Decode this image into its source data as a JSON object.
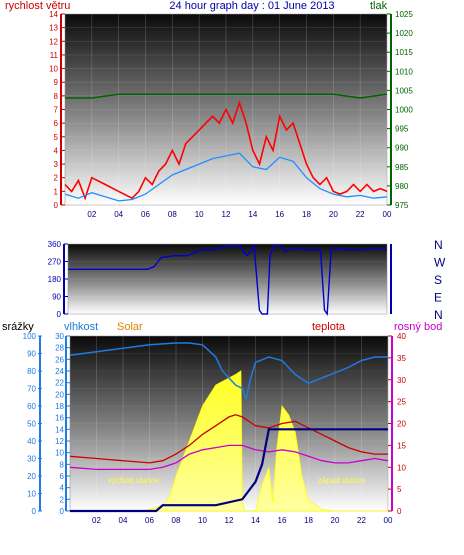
{
  "header": {
    "left": "rychlost větru",
    "center": "24 hour graph day : 01 June 2013",
    "right": "tlak"
  },
  "hours": [
    "02",
    "04",
    "06",
    "08",
    "10",
    "12",
    "14",
    "16",
    "18",
    "20",
    "22",
    "00"
  ],
  "colors": {
    "wind": "#ff0000",
    "wind_avg": "#1e90ff",
    "pressure": "#006400",
    "direction": "#0000cd",
    "humidity": "#1e7be0",
    "solar": "#ffff00",
    "temperature": "#cc0000",
    "dewpoint": "#cc00cc",
    "rain": "#000080"
  },
  "chart_data": [
    {
      "type": "line",
      "panel": "wind-pressure",
      "x_range": [
        0,
        24
      ],
      "left_axis": {
        "label": "rychlost větru",
        "range": [
          0,
          14
        ],
        "ticks": [
          "0",
          "1",
          "2",
          "3",
          "4",
          "5",
          "6",
          "7",
          "8",
          "9",
          "10",
          "11",
          "12",
          "13",
          "14"
        ]
      },
      "right_axis": {
        "label": "tlak",
        "range": [
          975,
          1025
        ],
        "ticks": [
          "975",
          "980",
          "985",
          "990",
          "995",
          "1000",
          "1005",
          "1010",
          "1015",
          "1020",
          "1025"
        ]
      },
      "series": [
        {
          "name": "gust",
          "x": [
            0,
            0.5,
            1,
            1.5,
            2,
            3,
            4,
            5,
            5.5,
            6,
            6.5,
            7,
            7.5,
            8,
            8.5,
            9,
            9.5,
            10,
            10.5,
            11,
            11.5,
            12,
            12.5,
            13,
            13.5,
            14,
            14.5,
            15,
            15.5,
            16,
            16.5,
            17,
            17.5,
            18,
            18.5,
            19,
            19.5,
            20,
            20.5,
            21,
            21.5,
            22,
            22.5,
            23,
            23.5,
            24
          ],
          "y": [
            1.5,
            1,
            1.8,
            0.5,
            2,
            1.5,
            1,
            0.5,
            1,
            2,
            1.5,
            2.5,
            3,
            4,
            3,
            4.5,
            5,
            5.5,
            6,
            6.5,
            6,
            7,
            6,
            7.5,
            6,
            4,
            3,
            5,
            4,
            6.5,
            5.5,
            6,
            4.5,
            3,
            2,
            1.5,
            2,
            1,
            0.8,
            1,
            1.5,
            1,
            1.5,
            1,
            1.2,
            1
          ]
        },
        {
          "name": "average",
          "x": [
            0,
            1,
            2,
            3,
            4,
            5,
            6,
            7,
            8,
            9,
            10,
            11,
            12,
            13,
            14,
            15,
            16,
            17,
            18,
            19,
            20,
            21,
            22,
            23,
            24
          ],
          "y": [
            0.8,
            0.5,
            0.9,
            0.6,
            0.3,
            0.4,
            0.8,
            1.5,
            2.2,
            2.6,
            3,
            3.4,
            3.6,
            3.8,
            2.8,
            2.6,
            3.5,
            3.2,
            2,
            1.2,
            0.8,
            0.6,
            0.7,
            0.5,
            0.6
          ]
        },
        {
          "name": "pressure",
          "x": [
            0,
            2,
            4,
            6,
            8,
            10,
            12,
            14,
            16,
            18,
            20,
            22,
            24
          ],
          "y": [
            1003,
            1003,
            1004,
            1004,
            1004,
            1004,
            1004,
            1004,
            1004,
            1004,
            1004,
            1003,
            1004
          ]
        }
      ]
    },
    {
      "type": "line",
      "panel": "wind-direction",
      "x_range": [
        0,
        24
      ],
      "left_axis": {
        "range": [
          0,
          360
        ],
        "ticks": [
          "0",
          "90",
          "180",
          "270",
          "360"
        ]
      },
      "right_axis": {
        "ticks": [
          "N",
          "E",
          "S",
          "W",
          "N"
        ]
      },
      "series": [
        {
          "name": "direction",
          "x": [
            0,
            3,
            6,
            6.5,
            7,
            8,
            9,
            10,
            11,
            12,
            13,
            13.2,
            13.5,
            14,
            14.4,
            14.6,
            15,
            15.2,
            15.5,
            16,
            16.3,
            17,
            18,
            19,
            19.3,
            19.5,
            19.8,
            20,
            21,
            22,
            23,
            24
          ],
          "y": [
            230,
            230,
            230,
            245,
            290,
            300,
            300,
            330,
            330,
            350,
            350,
            320,
            300,
            350,
            20,
            0,
            0,
            300,
            350,
            350,
            320,
            340,
            330,
            330,
            20,
            0,
            330,
            340,
            330,
            330,
            340,
            330
          ]
        }
      ]
    },
    {
      "type": "area",
      "panel": "weather",
      "x_range": [
        0,
        24
      ],
      "axes": {
        "rain": {
          "label": "srážky",
          "range": [
            0,
            100
          ],
          "ticks": [
            "0",
            "10",
            "20",
            "30",
            "40",
            "50",
            "60",
            "70",
            "80",
            "90",
            "100"
          ]
        },
        "humidity": {
          "label": "vlhkost",
          "range": [
            0,
            30
          ],
          "ticks": [
            "0",
            "2",
            "4",
            "6",
            "8",
            "10",
            "12",
            "14",
            "16",
            "18",
            "20",
            "22",
            "24",
            "26",
            "28",
            "30"
          ]
        },
        "solar": {
          "label": "Solar"
        },
        "temperature": {
          "label": "teplota",
          "range": [
            0,
            40
          ],
          "ticks": [
            "0",
            "5",
            "10",
            "15",
            "20",
            "25",
            "30",
            "35",
            "40"
          ]
        },
        "dewpoint": {
          "label": "rosný bod"
        }
      },
      "annotations": [
        "východ slunce",
        "západ slunce"
      ],
      "series": [
        {
          "name": "humidity",
          "x": [
            0,
            1,
            2,
            4,
            6,
            8,
            9,
            10,
            11,
            11.5,
            12,
            12.5,
            13,
            13.3,
            13.6,
            14,
            15,
            16,
            17,
            18,
            19,
            20,
            21,
            22,
            23,
            24
          ],
          "y": [
            89,
            90,
            91,
            93,
            95,
            96,
            96,
            95,
            88,
            80,
            76,
            72,
            70,
            64,
            75,
            85,
            88,
            86,
            78,
            73,
            76,
            79,
            82,
            86,
            88,
            88
          ]
        },
        {
          "name": "solar",
          "x": [
            0,
            5,
            5.5,
            6,
            7,
            7.5,
            8,
            9,
            10,
            11,
            12,
            12.5,
            12.9,
            13,
            13.2,
            14,
            14.5,
            15,
            15.3,
            15.6,
            16,
            16.5,
            17,
            17.5,
            18,
            19,
            20,
            21,
            22,
            24
          ],
          "y": [
            0,
            0,
            0,
            1,
            3,
            8,
            20,
            40,
            60,
            72,
            76,
            78,
            80,
            5,
            0,
            0,
            15,
            25,
            5,
            35,
            60,
            55,
            45,
            20,
            6,
            1,
            0,
            0,
            0,
            0
          ]
        },
        {
          "name": "temperature",
          "x": [
            0,
            2,
            4,
            6,
            7,
            8,
            9,
            10,
            11,
            12,
            12.5,
            13,
            14,
            15,
            16,
            17,
            18,
            19,
            20,
            21,
            22,
            23,
            24
          ],
          "y": [
            12.5,
            12,
            11.5,
            11,
            11.5,
            13,
            15,
            17.5,
            19.5,
            21.5,
            22,
            21.5,
            19.5,
            19,
            20,
            20.5,
            19,
            17.5,
            16,
            14.5,
            13.5,
            13,
            13
          ]
        },
        {
          "name": "dewpoint",
          "x": [
            0,
            2,
            4,
            6,
            7,
            8,
            9,
            10,
            11,
            12,
            13,
            14,
            15,
            16,
            17,
            18,
            19,
            20,
            21,
            22,
            23,
            24
          ],
          "y": [
            10,
            9.5,
            9.5,
            9.5,
            10,
            11,
            13,
            14,
            14.5,
            15,
            15,
            14,
            13.5,
            14,
            13.5,
            12.5,
            11.5,
            11,
            11,
            11.5,
            12,
            11.5
          ]
        },
        {
          "name": "rain",
          "x": [
            0,
            6,
            6.5,
            7,
            8,
            11,
            13,
            14,
            14.5,
            15,
            16,
            18,
            20,
            22,
            24
          ],
          "y": [
            0,
            0,
            0,
            1,
            1,
            1,
            2,
            5,
            8,
            14,
            14,
            14,
            14,
            14,
            14
          ]
        }
      ]
    }
  ]
}
